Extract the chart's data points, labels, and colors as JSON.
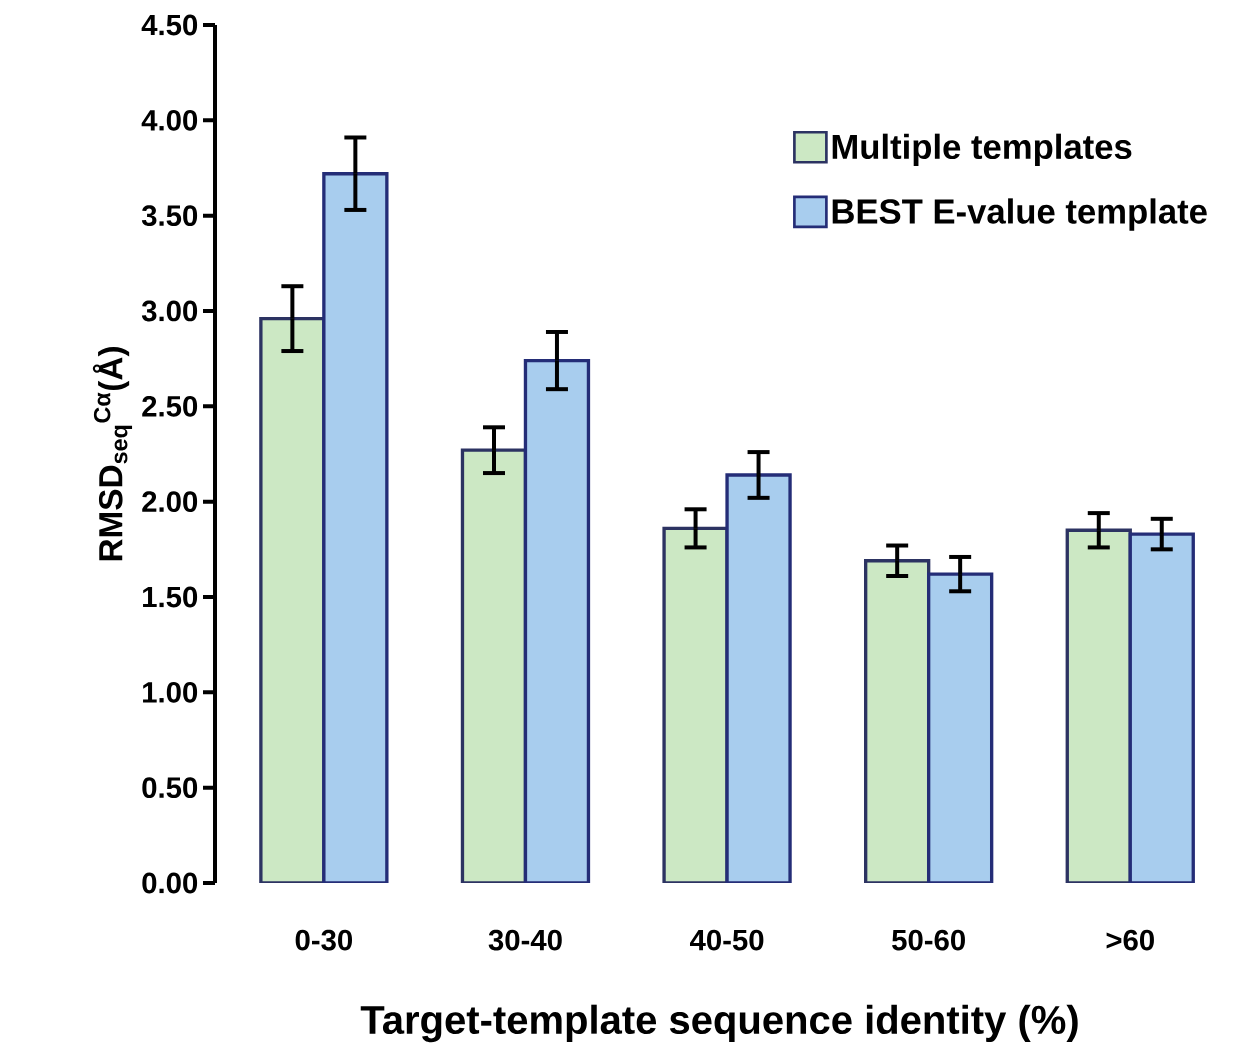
{
  "chart_data": {
    "type": "bar",
    "xlabel": "Target-template sequence identity (%)",
    "ylabel": "RMSD$_{seq}$$^{Cα}$(Å)",
    "categories": [
      "0-30",
      "30-40",
      "40-50",
      "50-60",
      ">60"
    ],
    "series": [
      {
        "name": "Multiple templates",
        "color": "#cce8c4",
        "values": [
          2.96,
          2.27,
          1.86,
          1.69,
          1.85
        ],
        "errors": [
          0.17,
          0.12,
          0.1,
          0.08,
          0.09
        ]
      },
      {
        "name": "BEST E-value template",
        "color": "#a8cdee",
        "values": [
          3.72,
          2.74,
          2.14,
          1.62,
          1.83
        ],
        "errors": [
          0.19,
          0.15,
          0.12,
          0.09,
          0.08
        ]
      }
    ],
    "ylim": [
      0,
      4.5
    ],
    "yticks": [
      {
        "value": 0,
        "label": "0.00"
      },
      {
        "value": 0.5,
        "label": "0.50"
      },
      {
        "value": 1,
        "label": "1.00"
      },
      {
        "value": 1.5,
        "label": "1.50"
      },
      {
        "value": 2,
        "label": "2.00"
      },
      {
        "value": 2.5,
        "label": "2.50"
      },
      {
        "value": 3,
        "label": "3.00"
      },
      {
        "value": 3.5,
        "label": "3.50"
      },
      {
        "value": 4,
        "label": "4.00"
      },
      {
        "value": 4.5,
        "label": "4.50"
      }
    ],
    "grid": false,
    "legend": "top right"
  }
}
